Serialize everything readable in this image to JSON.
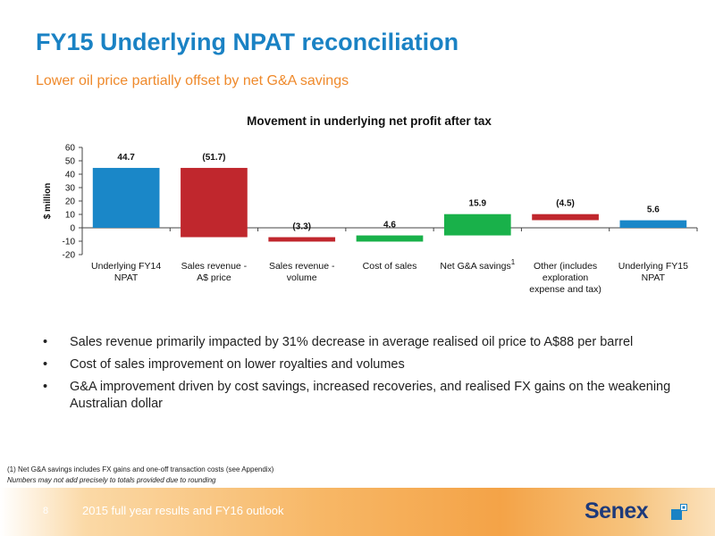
{
  "slide": {
    "title": "FY15 Underlying NPAT reconciliation",
    "subtitle": "Lower oil price partially offset by net G&A savings",
    "bullets": [
      "Sales revenue primarily impacted by 31% decrease in average realised oil price to A$88 per barrel",
      "Cost of sales improvement on lower royalties and volumes",
      "G&A improvement driven by cost savings, increased recoveries, and realised FX gains on the weakening Australian dollar"
    ],
    "bullet_marker": "•",
    "footnotes": [
      "(1)    Net G&A savings includes FX gains and one-off transaction costs (see Appendix)",
      "Numbers may not add  precisely to totals provided due to rounding"
    ],
    "footer": {
      "page_number": "8",
      "text": "2015 full year results and FY16 outlook",
      "logo": "Senex",
      "brand_colors": [
        "#1e3a7a",
        "#1a82c4",
        "#ef8a2c"
      ]
    }
  },
  "chart_data": {
    "type": "bar",
    "subtype": "waterfall",
    "title": "Movement in underlying net profit after tax",
    "ylabel": "$ million",
    "ylim": [
      -20,
      60
    ],
    "yticks": [
      60,
      50,
      40,
      30,
      20,
      10,
      0,
      -10,
      -20
    ],
    "grid": false,
    "categories": [
      [
        "Underlying FY14",
        "NPAT"
      ],
      [
        "Sales revenue -",
        "A$ price"
      ],
      [
        "Sales revenue -",
        "volume"
      ],
      [
        "Cost of sales"
      ],
      [
        "Net G&A savings"
      ],
      [
        "Other (includes",
        "exploration",
        "expense and tax)"
      ],
      [
        "Underlying FY15",
        "NPAT"
      ]
    ],
    "category_superscripts": [
      "",
      "",
      "",
      "",
      "1",
      "",
      ""
    ],
    "values": [
      44.7,
      -51.7,
      -3.3,
      4.6,
      15.9,
      -4.5,
      5.6
    ],
    "data_labels": [
      "44.7",
      "(51.7)",
      "(3.3)",
      "4.6",
      "15.9",
      "(4.5)",
      "5.6"
    ],
    "kinds": [
      "total",
      "decrease",
      "decrease",
      "increase",
      "increase",
      "decrease",
      "total"
    ],
    "colors": {
      "total": "#1a87c8",
      "decrease": "#c0272d",
      "increase": "#19b14a"
    }
  }
}
